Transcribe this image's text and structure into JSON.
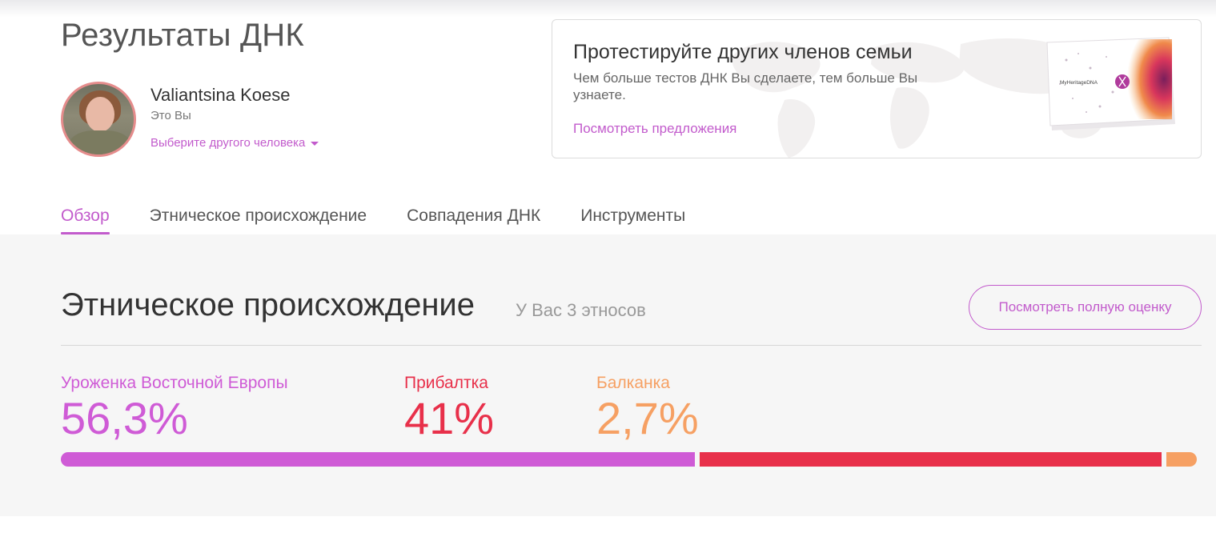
{
  "header": {
    "title": "Результаты ДНК"
  },
  "profile": {
    "name": "Valiantsina Koese",
    "subtitle": "Это Вы",
    "select_person": "Выберите другого человека"
  },
  "promo": {
    "title": "Протестируйте других членов семьи",
    "text": "Чем больше тестов ДНК Вы сделаете, тем больше Вы узнаете.",
    "link": "Посмотреть предложения",
    "kit_brand": "MyHeritageDNA"
  },
  "tabs": [
    {
      "label": "Обзор",
      "active": true
    },
    {
      "label": "Этническое происхождение",
      "active": false
    },
    {
      "label": "Совпадения ДНК",
      "active": false
    },
    {
      "label": "Инструменты",
      "active": false
    }
  ],
  "ethnicity": {
    "title": "Этническое происхождение",
    "subtitle": "У Вас 3 этносов",
    "button": "Посмотреть полную оценку",
    "items": [
      {
        "name": "Уроженка Восточной Европы",
        "percent_label": "56,3%",
        "value": 56.3,
        "color": "#cf5bd6"
      },
      {
        "name": "Прибалтка",
        "percent_label": "41%",
        "value": 41,
        "color": "#e8304a"
      },
      {
        "name": "Балканка",
        "percent_label": "2,7%",
        "value": 2.7,
        "color": "#f6a063"
      }
    ]
  },
  "colors": {
    "accent": "#c25bcc",
    "avatar_border": "#e58c8c"
  }
}
